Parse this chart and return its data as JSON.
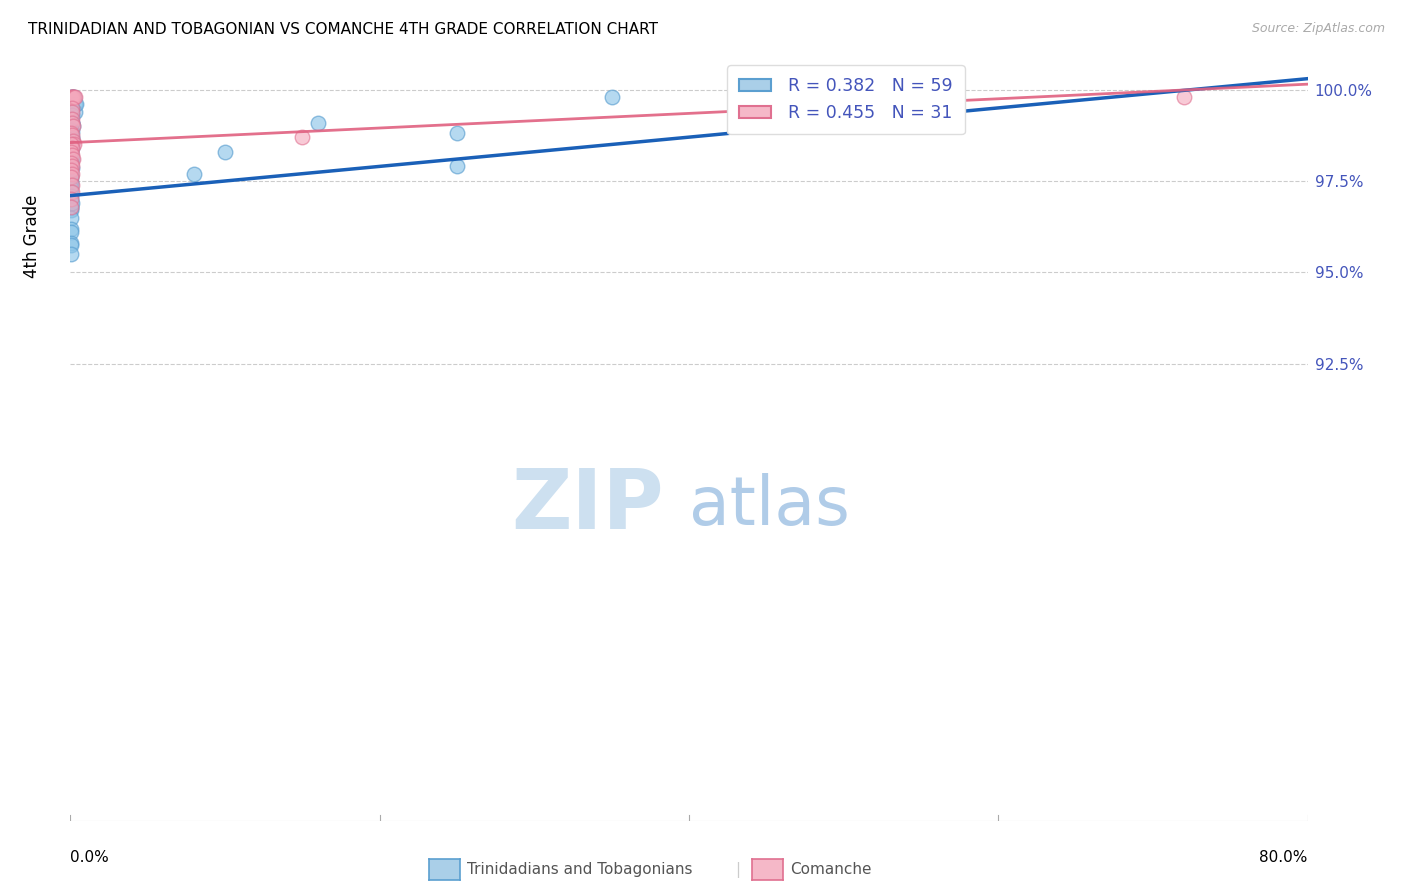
{
  "title": "TRINIDADIAN AND TOBAGONIAN VS COMANCHE 4TH GRADE CORRELATION CHART",
  "source": "Source: ZipAtlas.com",
  "ylabel": "4th Grade",
  "xmin": 0.0,
  "xmax": 80.0,
  "ymin": 80.0,
  "ymax": 100.5,
  "yticks": [
    92.5,
    95.0,
    97.5,
    100.0
  ],
  "ytick_labels": [
    "92.5%",
    "95.0%",
    "97.5%",
    "100.0%"
  ],
  "legend1_label": "R = 0.382   N = 59",
  "legend2_label": "R = 0.455   N = 31",
  "watermark_zip": "ZIP",
  "watermark_atlas": "atlas",
  "blue_scatter": [
    [
      0.05,
      99.8
    ],
    [
      0.1,
      99.8
    ],
    [
      0.15,
      99.8
    ],
    [
      0.2,
      99.8
    ],
    [
      0.22,
      99.8
    ],
    [
      0.3,
      99.6
    ],
    [
      0.32,
      99.4
    ],
    [
      0.35,
      99.6
    ],
    [
      0.05,
      99.5
    ],
    [
      0.08,
      99.5
    ],
    [
      0.12,
      99.3
    ],
    [
      0.05,
      99.2
    ],
    [
      0.08,
      99.1
    ],
    [
      0.12,
      99.1
    ],
    [
      0.15,
      99.0
    ],
    [
      0.05,
      98.9
    ],
    [
      0.08,
      98.85
    ],
    [
      0.1,
      98.7
    ],
    [
      0.05,
      98.7
    ],
    [
      0.08,
      98.65
    ],
    [
      0.1,
      98.6
    ],
    [
      0.12,
      98.5
    ],
    [
      0.05,
      98.5
    ],
    [
      0.07,
      98.45
    ],
    [
      0.1,
      98.4
    ],
    [
      0.02,
      98.3
    ],
    [
      0.04,
      98.25
    ],
    [
      0.06,
      98.2
    ],
    [
      0.08,
      98.1
    ],
    [
      0.02,
      98.05
    ],
    [
      0.04,
      98.0
    ],
    [
      0.06,
      97.9
    ],
    [
      0.08,
      97.85
    ],
    [
      0.02,
      97.7
    ],
    [
      0.04,
      97.65
    ],
    [
      0.06,
      97.6
    ],
    [
      0.02,
      97.5
    ],
    [
      0.04,
      97.45
    ],
    [
      0.06,
      97.4
    ],
    [
      0.02,
      97.3
    ],
    [
      0.04,
      97.2
    ],
    [
      0.02,
      97.1
    ],
    [
      0.04,
      97.0
    ],
    [
      0.02,
      96.8
    ],
    [
      0.04,
      96.75
    ],
    [
      0.06,
      96.7
    ],
    [
      0.12,
      96.9
    ],
    [
      0.02,
      96.5
    ],
    [
      0.02,
      96.2
    ],
    [
      0.04,
      96.1
    ],
    [
      0.02,
      95.8
    ],
    [
      0.04,
      95.75
    ],
    [
      0.04,
      95.5
    ],
    [
      35.0,
      99.8
    ],
    [
      16.0,
      99.1
    ],
    [
      25.0,
      98.8
    ],
    [
      10.0,
      98.3
    ],
    [
      25.0,
      97.9
    ],
    [
      8.0,
      97.7
    ]
  ],
  "pink_scatter": [
    [
      0.05,
      99.8
    ],
    [
      0.1,
      99.8
    ],
    [
      0.12,
      99.8
    ],
    [
      0.18,
      99.8
    ],
    [
      0.25,
      99.8
    ],
    [
      0.32,
      99.8
    ],
    [
      0.08,
      99.5
    ],
    [
      0.12,
      99.4
    ],
    [
      0.08,
      99.2
    ],
    [
      0.12,
      99.1
    ],
    [
      0.18,
      99.0
    ],
    [
      0.05,
      98.8
    ],
    [
      0.1,
      98.75
    ],
    [
      0.15,
      98.6
    ],
    [
      0.22,
      98.5
    ],
    [
      0.05,
      98.5
    ],
    [
      0.1,
      98.4
    ],
    [
      0.05,
      98.3
    ],
    [
      0.1,
      98.2
    ],
    [
      0.18,
      98.1
    ],
    [
      0.05,
      98.0
    ],
    [
      0.08,
      97.9
    ],
    [
      0.05,
      97.8
    ],
    [
      0.1,
      97.7
    ],
    [
      0.05,
      97.6
    ],
    [
      0.12,
      97.4
    ],
    [
      0.08,
      97.2
    ],
    [
      0.05,
      97.0
    ],
    [
      0.05,
      96.8
    ],
    [
      72.0,
      99.8
    ],
    [
      15.0,
      98.7
    ]
  ],
  "blue_line_x": [
    0.0,
    80.0
  ],
  "blue_line_y": [
    97.1,
    100.3
  ],
  "pink_line_x": [
    0.0,
    80.0
  ],
  "pink_line_y": [
    98.55,
    100.15
  ],
  "grid_color": "#cccccc",
  "bg_color": "#ffffff",
  "title_fontsize": 11,
  "dot_size": 110,
  "legend_text_color": "#4455bb",
  "right_tick_color": "#4455bb"
}
